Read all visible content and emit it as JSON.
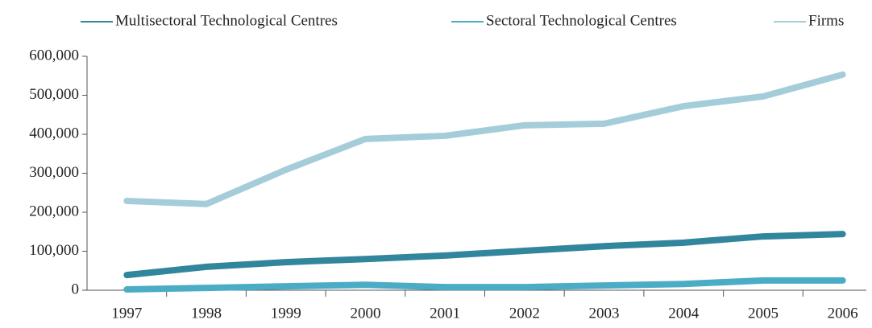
{
  "chart_data": {
    "type": "line",
    "categories": [
      "1997",
      "1998",
      "1999",
      "2000",
      "2001",
      "2002",
      "2003",
      "2004",
      "2005",
      "2006"
    ],
    "series": [
      {
        "name": "Multisectoral Technological Centres",
        "color": "#31859c",
        "values": [
          39000,
          60000,
          72000,
          80000,
          89000,
          101000,
          113000,
          122000,
          138000,
          144000
        ]
      },
      {
        "name": "Sectoral Technological Centres",
        "color": "#4bacc6",
        "values": [
          2000,
          6000,
          10000,
          14000,
          8000,
          8000,
          12000,
          16000,
          25000,
          25000
        ]
      },
      {
        "name": "Firms",
        "color": "#a5cdd9",
        "values": [
          229000,
          221000,
          309000,
          388000,
          396000,
          423000,
          427000,
          472000,
          497000,
          553000
        ]
      }
    ],
    "ylim": [
      0,
      600000
    ],
    "yticks": [
      0,
      {
        "value": 100000,
        "label": "100,000"
      },
      {
        "value": 200000,
        "label": "200,000"
      },
      {
        "value": 300000,
        "label": "300,000"
      },
      {
        "value": 400000,
        "label": "400,000"
      },
      {
        "value": 500000,
        "label": "500,000"
      },
      {
        "value": 600000,
        "label": "600,000"
      }
    ],
    "legend": "top"
  }
}
